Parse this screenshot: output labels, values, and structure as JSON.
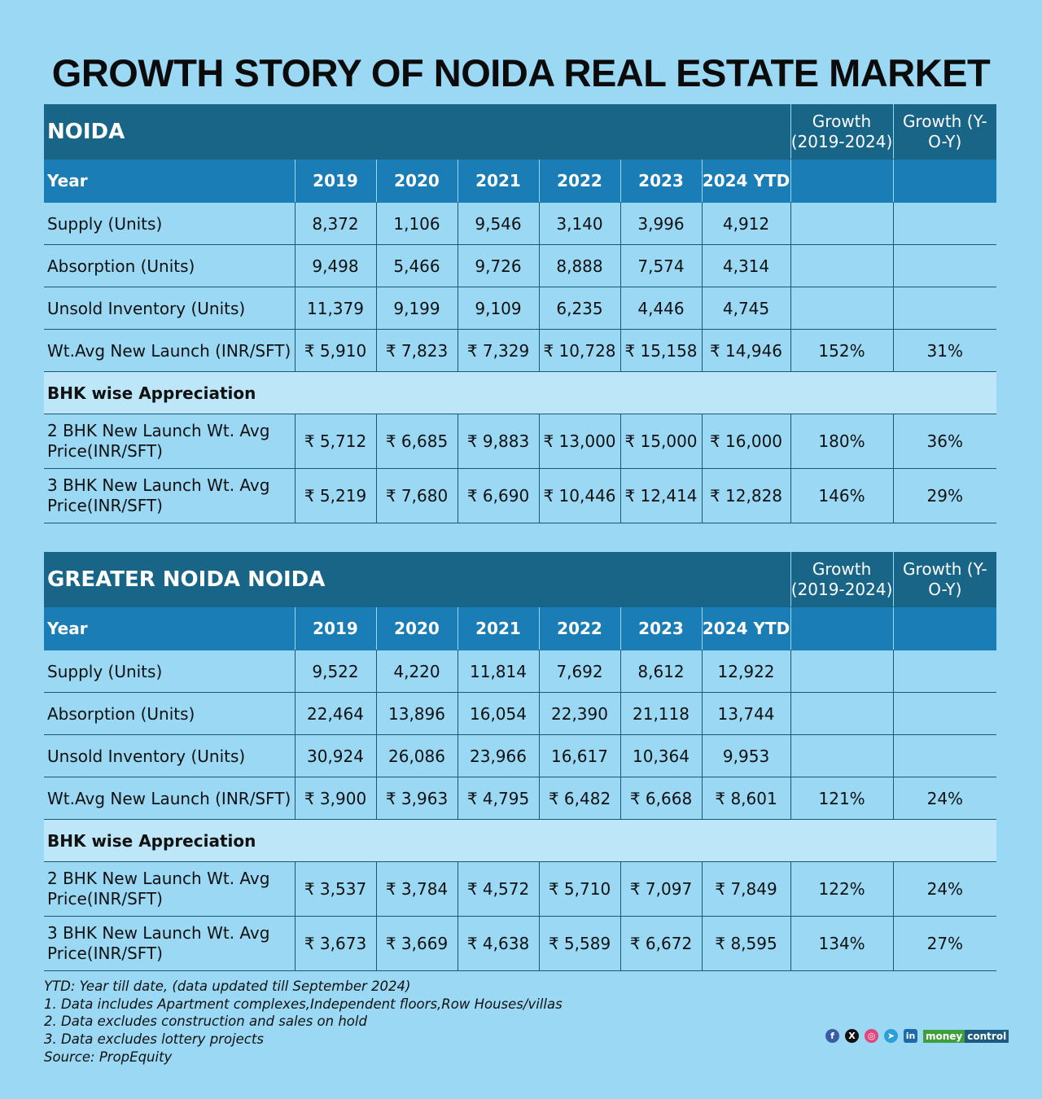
{
  "title": "GROWTH STORY OF NOIDA REAL ESTATE MARKET",
  "chart_data": {
    "type": "table",
    "title": "GROWTH STORY OF NOIDA REAL ESTATE MARKET",
    "tables": [
      {
        "name": "NOIDA",
        "growth_headers": [
          "Growth (2019-2024)",
          "Growth (Y-O-Y)"
        ],
        "year_label": "Year",
        "years": [
          "2019",
          "2020",
          "2021",
          "2022",
          "2023",
          "2024 YTD"
        ],
        "rows": [
          {
            "label": "Supply (Units)",
            "values": [
              "8,372",
              "1,106",
              "9,546",
              "3,140",
              "3,996",
              "4,912"
            ],
            "growth": "",
            "yoy": ""
          },
          {
            "label": "Absorption (Units)",
            "values": [
              "9,498",
              "5,466",
              "9,726",
              "8,888",
              "7,574",
              "4,314"
            ],
            "growth": "",
            "yoy": ""
          },
          {
            "label": "Unsold Inventory (Units)",
            "values": [
              "11,379",
              "9,199",
              "9,109",
              "6,235",
              "4,446",
              "4,745"
            ],
            "growth": "",
            "yoy": ""
          },
          {
            "label": "Wt.Avg New Launch (INR/SFT)",
            "values": [
              "₹ 5,910",
              "₹ 7,823",
              "₹ 7,329",
              "₹ 10,728",
              "₹ 15,158",
              "₹ 14,946"
            ],
            "growth": "152%",
            "yoy": "31%"
          },
          {
            "section": "BHK wise Appreciation"
          },
          {
            "label": "2 BHK New Launch Wt. Avg Price(INR/SFT)",
            "values": [
              "₹ 5,712",
              "₹ 6,685",
              "₹ 9,883",
              "₹ 13,000",
              "₹ 15,000",
              "₹ 16,000"
            ],
            "growth": "180%",
            "yoy": "36%"
          },
          {
            "label": "3 BHK New Launch Wt. Avg Price(INR/SFT)",
            "values": [
              "₹ 5,219",
              "₹ 7,680",
              "₹ 6,690",
              "₹ 10,446",
              "₹ 12,414",
              "₹ 12,828"
            ],
            "growth": "146%",
            "yoy": "29%"
          }
        ]
      },
      {
        "name": "GREATER NOIDA NOIDA",
        "growth_headers": [
          "Growth (2019-2024)",
          "Growth (Y-O-Y)"
        ],
        "year_label": "Year",
        "years": [
          "2019",
          "2020",
          "2021",
          "2022",
          "2023",
          "2024 YTD"
        ],
        "rows": [
          {
            "label": "Supply (Units)",
            "values": [
              "9,522",
              "4,220",
              "11,814",
              "7,692",
              "8,612",
              "12,922"
            ],
            "growth": "",
            "yoy": ""
          },
          {
            "label": "Absorption (Units)",
            "values": [
              "22,464",
              "13,896",
              "16,054",
              "22,390",
              "21,118",
              "13,744"
            ],
            "growth": "",
            "yoy": ""
          },
          {
            "label": "Unsold Inventory (Units)",
            "values": [
              "30,924",
              "26,086",
              "23,966",
              "16,617",
              "10,364",
              "9,953"
            ],
            "growth": "",
            "yoy": ""
          },
          {
            "label": "Wt.Avg New Launch (INR/SFT)",
            "values": [
              "₹ 3,900",
              "₹ 3,963",
              "₹ 4,795",
              "₹ 6,482",
              "₹ 6,668",
              "₹ 8,601"
            ],
            "growth": "121%",
            "yoy": "24%"
          },
          {
            "section": "BHK wise Appreciation"
          },
          {
            "label": "2 BHK New Launch Wt. Avg Price(INR/SFT)",
            "values": [
              "₹ 3,537",
              "₹ 3,784",
              "₹ 4,572",
              "₹ 5,710",
              "₹ 7,097",
              "₹ 7,849"
            ],
            "growth": "122%",
            "yoy": "24%"
          },
          {
            "label": "3 BHK New Launch Wt. Avg Price(INR/SFT)",
            "values": [
              "₹ 3,673",
              "₹ 3,669",
              "₹ 4,638",
              "₹ 5,589",
              "₹ 6,672",
              "₹ 8,595"
            ],
            "growth": "134%",
            "yoy": "27%"
          }
        ]
      }
    ]
  },
  "notes": [
    "YTD:  Year till date, (data updated till September 2024)",
    "1. Data includes Apartment complexes,Independent floors,Row Houses/villas",
    "2. Data excludes construction and sales on hold",
    "3. Data excludes lottery projects",
    "Source: PropEquity"
  ],
  "branding": {
    "social_icons": [
      "facebook-icon",
      "x-icon",
      "instagram-icon",
      "telegram-icon",
      "linkedin-icon"
    ],
    "logo_text": "moneycontrol",
    "colors": {
      "background": "#9ad8f4",
      "header": "#196587",
      "year_row": "#1b7db5",
      "section_row": "#bde7f8"
    }
  }
}
